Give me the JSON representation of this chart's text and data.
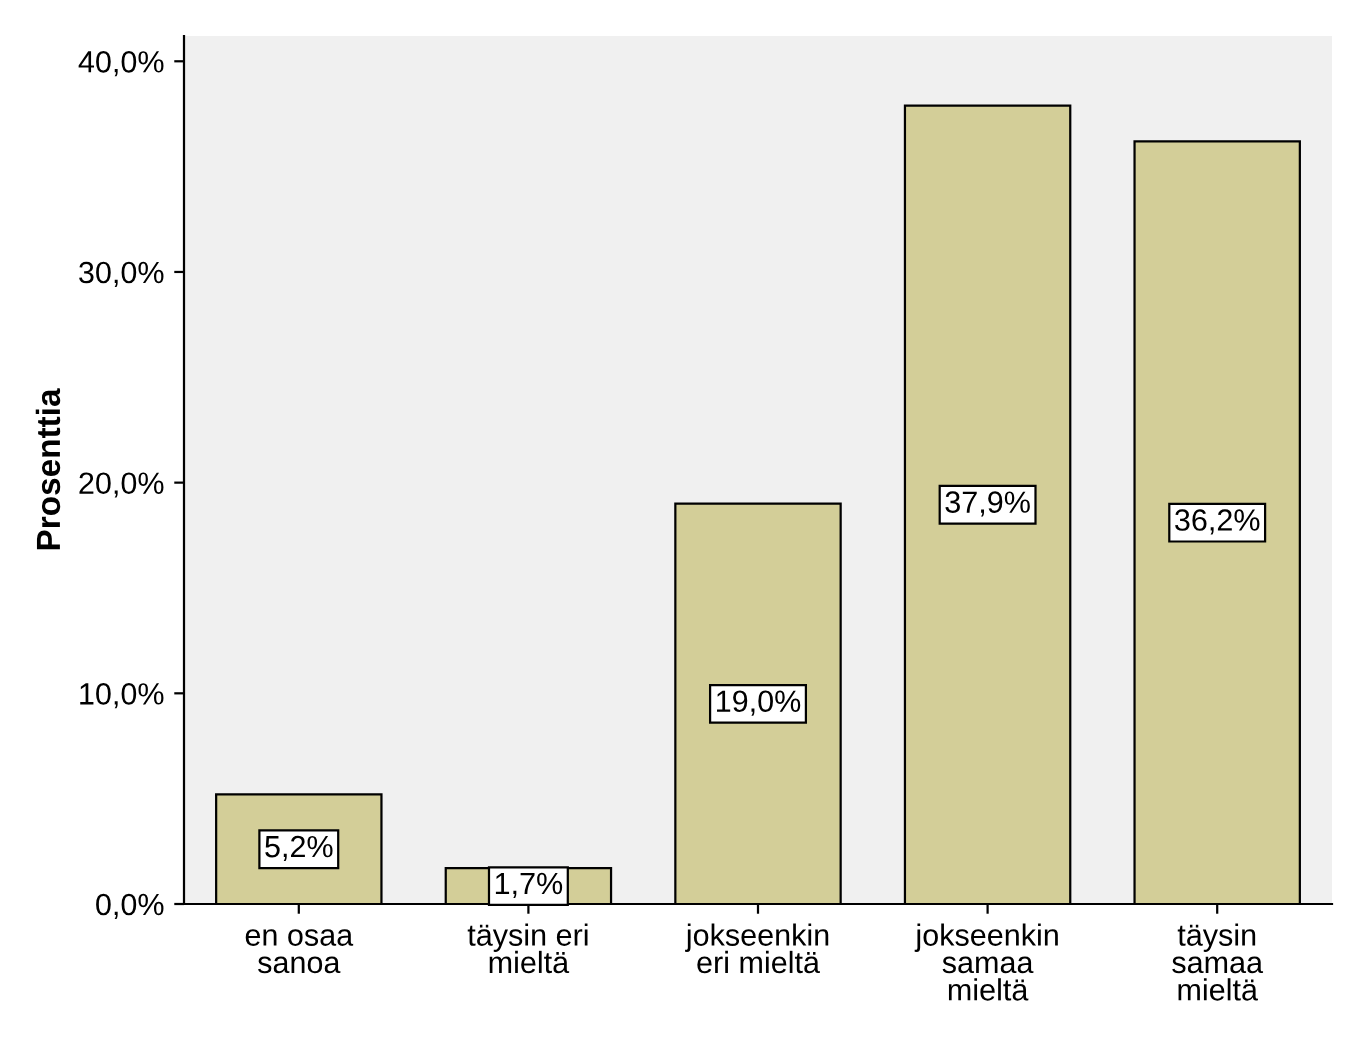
{
  "chart_data": {
    "type": "bar",
    "ylabel": "Prosenttia",
    "categories": [
      "en osaa\nsanoa",
      "täysin eri\nmieltä",
      "jokseenkin\neri mieltä",
      "jokseenkin\nsamaa\nmieltä",
      "täysin\nsamaa\nmieltä"
    ],
    "values": [
      5.2,
      1.7,
      19.0,
      37.9,
      36.2
    ],
    "value_labels": [
      "5,2%",
      "1,7%",
      "19,0%",
      "37,9%",
      "36,2%"
    ],
    "color": "#d3ce98",
    "ylim": [
      0,
      41.2
    ],
    "yticks": [
      {
        "value": 0,
        "label": "0,0%"
      },
      {
        "value": 10,
        "label": "10,0%"
      },
      {
        "value": 20,
        "label": "20,0%"
      },
      {
        "value": 30,
        "label": "30,0%"
      },
      {
        "value": 40,
        "label": "40,0%"
      }
    ],
    "grid": false,
    "legend": false
  }
}
